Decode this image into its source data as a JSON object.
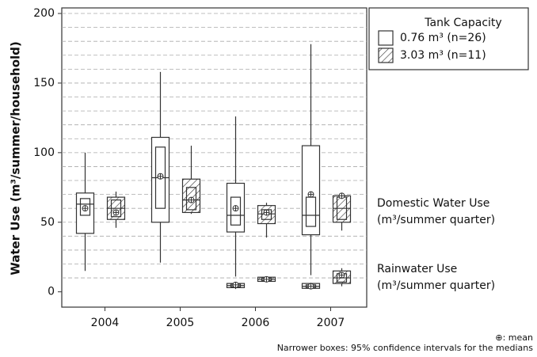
{
  "chart_data": {
    "type": "box",
    "y_label": "Water Use (m³/summer/household)",
    "categories": [
      "2004",
      "2005",
      "2006",
      "2007"
    ],
    "ylim": [
      -11,
      204
    ],
    "yticks": [
      0,
      50,
      100,
      150,
      200
    ],
    "ygrid": [
      10,
      20,
      30,
      40,
      50,
      60,
      70,
      80,
      90,
      100,
      110,
      120,
      130,
      140,
      150,
      160,
      170,
      180,
      190,
      200
    ],
    "legend_title": "Tank Capacity",
    "series": [
      {
        "name": "0.76 m³  (n=26)",
        "hatch": false,
        "domestic": [
          {
            "low": 15,
            "q1": 42,
            "ci_low": 55,
            "median": 63,
            "ci_high": 67,
            "q3": 71,
            "high": 100,
            "mean": 60
          },
          {
            "low": 21,
            "q1": 50,
            "ci_low": 60,
            "median": 82,
            "ci_high": 104,
            "q3": 111,
            "high": 158,
            "mean": 83
          },
          {
            "low": 11,
            "q1": 43,
            "ci_low": 48,
            "median": 55,
            "ci_high": 68,
            "q3": 78,
            "high": 126,
            "mean": 60
          },
          {
            "low": 12,
            "q1": 41,
            "ci_low": 47,
            "median": 55,
            "ci_high": 68,
            "q3": 105,
            "high": 178,
            "mean": 70
          }
        ],
        "rainwater": [
          null,
          null,
          {
            "low": 2,
            "q1": 3,
            "ci_low": 3.5,
            "median": 4.5,
            "ci_high": 5.5,
            "q3": 6,
            "high": 7,
            "mean": 5
          },
          {
            "low": 2,
            "q1": 2.5,
            "ci_low": 3,
            "median": 4,
            "ci_high": 5,
            "q3": 6,
            "high": 6.5,
            "mean": 4
          }
        ]
      },
      {
        "name": "3.03 m³  (n=11)",
        "hatch": true,
        "domestic": [
          {
            "low": 46,
            "q1": 52,
            "ci_low": 54,
            "median": 60,
            "ci_high": 66,
            "q3": 68,
            "high": 72,
            "mean": 57
          },
          {
            "low": 56,
            "q1": 57,
            "ci_low": 59,
            "median": 66,
            "ci_high": 75,
            "q3": 81,
            "high": 105,
            "mean": 66
          },
          {
            "low": 39,
            "q1": 49,
            "ci_low": 52,
            "median": 56,
            "ci_high": 59,
            "q3": 62,
            "high": 64,
            "mean": 57
          },
          {
            "low": 44,
            "q1": 50,
            "ci_low": 52,
            "median": 60,
            "ci_high": 68,
            "q3": 69,
            "high": 71,
            "mean": 69
          }
        ],
        "rainwater": [
          null,
          null,
          {
            "low": 7,
            "q1": 7.5,
            "ci_low": 8,
            "median": 9,
            "ci_high": 10,
            "q3": 10.5,
            "high": 11,
            "mean": 9
          },
          {
            "low": 4,
            "q1": 6,
            "ci_low": 7,
            "median": 10,
            "ci_high": 13,
            "q3": 15,
            "high": 17,
            "mean": 12
          }
        ]
      }
    ],
    "annotations": [
      "Domestic Water Use",
      "(m³/summer quarter)",
      "Rainwater Use",
      "(m³/summer quarter)"
    ],
    "footnotes": [
      "⊕: mean",
      "Narrower boxes: 95% confidence intervals for the medians"
    ]
  }
}
